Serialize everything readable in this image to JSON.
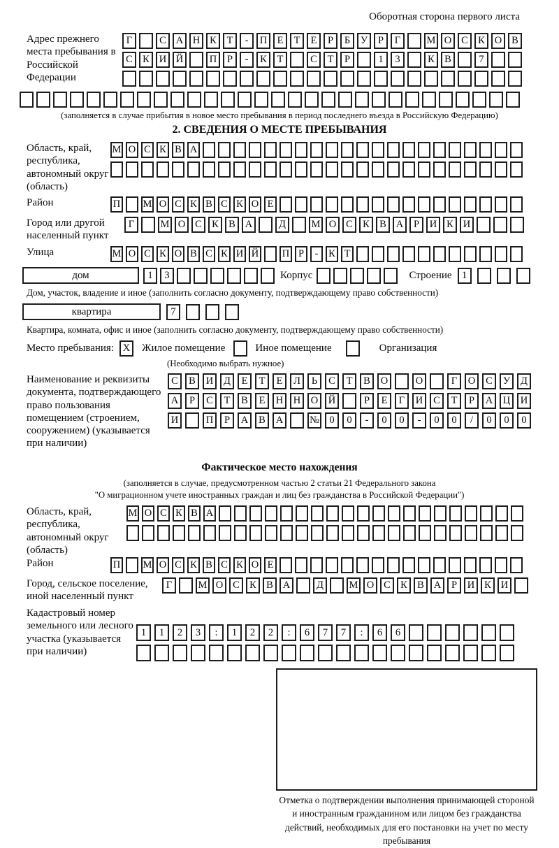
{
  "header": {
    "note": "Оборотная сторона первого листа"
  },
  "prev_address": {
    "label": "Адрес прежнего места пребывания в Российской Федерации",
    "row1": {
      "text": "Г САНКТ-ПЕТЕРБУРГ МОСКОВ",
      "len": 24
    },
    "row2": {
      "text": "СКИЙ ПР-КТ СТР 13 КВ 7",
      "len": 24
    },
    "row3": {
      "text": "",
      "len": 24
    },
    "row4": {
      "text": "",
      "len": 30
    },
    "note": "(заполняется в случае прибытия в новое место пребывания в период последнего въезда в Российскую Федерацию)"
  },
  "section2": {
    "title": "2. СВЕДЕНИЯ О МЕСТЕ ПРЕБЫВАНИЯ",
    "region": {
      "label": "Область, край, республика, автономный округ (область)",
      "row1": {
        "text": "МОСКВА",
        "len": 27
      },
      "row2": {
        "text": "",
        "len": 27
      }
    },
    "district": {
      "label": "Район",
      "row": {
        "text": "П МОСКВСКОЕ",
        "len": 27
      }
    },
    "city": {
      "label": "Город или другой населенный пункт",
      "row": {
        "text": "Г МОСКВА Д МОСКВАРИКИ",
        "len": 24
      }
    },
    "street": {
      "label": "Улица",
      "row": {
        "text": "МОСКОВСКИЙ ПР-КТ",
        "len": 27
      }
    },
    "house": {
      "box_label": "дом",
      "row": {
        "text": "13",
        "len": 8
      },
      "korpus_label": "Корпус",
      "korpus_row": {
        "text": "",
        "len": 5
      },
      "stroenie_label": "Строение",
      "stroenie_row": {
        "text": "1",
        "len": 4
      }
    },
    "house_note": "Дом, участок, владение и иное (заполнить согласно документу, подтверждающему право собственности)",
    "apartment": {
      "box_label": "квартира",
      "row": {
        "text": "7",
        "len": 4
      }
    },
    "apartment_note": "Квартира, комната, офис и иное (заполнить согласно документу, подтверждающему право собственности)",
    "stay_type": {
      "label": "Место пребывания:",
      "options": [
        {
          "label": "Жилое помещение",
          "checkbox": {
            "text": "X",
            "len": 1
          }
        },
        {
          "label": "Иное помещение",
          "checkbox": {
            "text": "",
            "len": 1
          }
        },
        {
          "label": "Организация",
          "checkbox": {
            "text": "",
            "len": 1
          }
        }
      ],
      "note": "(Необходимо выбрать нужное)"
    },
    "document": {
      "label": "Наименование и реквизиты документа, подтверждающего право пользования помещением (строением, сооружением) (указывается при наличии)",
      "row1": {
        "text": "СВИДЕТЕЛЬСТВО О ГОСУД",
        "len": 21
      },
      "row2": {
        "text": "АРСТВЕННОЙ РЕГИСТРАЦИ",
        "len": 21
      },
      "row3": {
        "text": "И ПРАВА №00-00-00/000",
        "len": 21
      }
    }
  },
  "actual_location": {
    "title": "Фактическое место нахождения",
    "note_line1": "(заполняется в случае, предусмотренном частью 2 статьи 21 Федерального закона",
    "note_line2": "\"О миграционном учете иностранных граждан и лиц без гражданства в Российской Федерации\")",
    "region": {
      "label": "Область, край, республика, автономный округ (область)",
      "row1": {
        "text": "МОСКВА",
        "len": 26
      },
      "row2": {
        "text": "",
        "len": 26
      }
    },
    "district": {
      "label": "Район",
      "row": {
        "text": "П МОСКВСКОЕ",
        "len": 27
      }
    },
    "city": {
      "label": "Город, сельское поселение, иной населенный пункт",
      "row": {
        "text": "Г МОСКВА Д МОСКВАРИКИ",
        "len": 22
      }
    },
    "cadastral": {
      "label": "Кадастровый номер земельного или лесного участка (указывается при наличии)",
      "row1": {
        "text": "1123:122:677:66",
        "len": 21
      },
      "row2": {
        "text": "",
        "len": 21
      }
    }
  },
  "footer": {
    "caption": "Отметка о подтверждении выполнения принимающей стороной и иностранным гражданином или лицом без гражданства действий, необходимых для его постановки на учет по месту пребывания"
  }
}
